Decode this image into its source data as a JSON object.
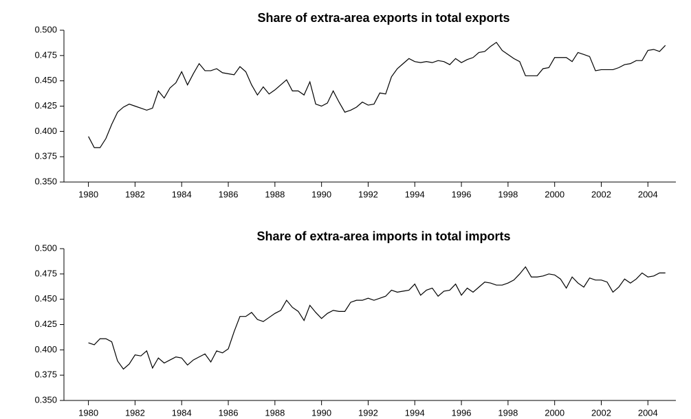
{
  "chart_data": [
    {
      "type": "line",
      "title": "Share of extra-area exports in total exports",
      "x": [
        1980,
        1980.25,
        1980.5,
        1980.75,
        1981,
        1981.25,
        1981.5,
        1981.75,
        1982,
        1982.25,
        1982.5,
        1982.75,
        1983,
        1983.25,
        1983.5,
        1983.75,
        1984,
        1984.25,
        1984.5,
        1984.75,
        1985,
        1985.25,
        1985.5,
        1985.75,
        1986,
        1986.25,
        1986.5,
        1986.75,
        1987,
        1987.25,
        1987.5,
        1987.75,
        1988,
        1988.25,
        1988.5,
        1988.75,
        1989,
        1989.25,
        1989.5,
        1989.75,
        1990,
        1990.25,
        1990.5,
        1990.75,
        1991,
        1991.25,
        1991.5,
        1991.75,
        1992,
        1992.25,
        1992.5,
        1992.75,
        1993,
        1993.25,
        1993.5,
        1993.75,
        1994,
        1994.25,
        1994.5,
        1994.75,
        1995,
        1995.25,
        1995.5,
        1995.75,
        1996,
        1996.25,
        1996.5,
        1996.75,
        1997,
        1997.25,
        1997.5,
        1997.75,
        1998,
        1998.25,
        1998.5,
        1998.75,
        1999,
        1999.25,
        1999.5,
        1999.75,
        2000,
        2000.25,
        2000.5,
        2000.75,
        2001,
        2001.25,
        2001.5,
        2001.75,
        2002,
        2002.25,
        2002.5,
        2002.75,
        2003,
        2003.25,
        2003.5,
        2003.75,
        2004,
        2004.25,
        2004.5,
        2004.75
      ],
      "values": [
        0.395,
        0.384,
        0.384,
        0.393,
        0.407,
        0.419,
        0.424,
        0.427,
        0.425,
        0.423,
        0.421,
        0.423,
        0.44,
        0.433,
        0.443,
        0.448,
        0.459,
        0.446,
        0.457,
        0.467,
        0.46,
        0.46,
        0.462,
        0.458,
        0.457,
        0.456,
        0.464,
        0.459,
        0.446,
        0.436,
        0.444,
        0.437,
        0.441,
        0.446,
        0.451,
        0.44,
        0.44,
        0.436,
        0.449,
        0.427,
        0.425,
        0.428,
        0.44,
        0.429,
        0.419,
        0.421,
        0.424,
        0.429,
        0.426,
        0.427,
        0.438,
        0.437,
        0.454,
        0.462,
        0.467,
        0.472,
        0.469,
        0.468,
        0.469,
        0.468,
        0.47,
        0.469,
        0.466,
        0.472,
        0.468,
        0.471,
        0.473,
        0.478,
        0.479,
        0.484,
        0.488,
        0.48,
        0.476,
        0.472,
        0.469,
        0.455,
        0.455,
        0.455,
        0.462,
        0.463,
        0.473,
        0.473,
        0.473,
        0.469,
        0.478,
        0.476,
        0.474,
        0.46,
        0.461,
        0.461,
        0.461,
        0.463,
        0.466,
        0.467,
        0.47,
        0.47,
        0.48,
        0.481,
        0.479,
        0.485
      ],
      "color": "#000000",
      "xlim": [
        1978.95,
        2005.2
      ],
      "xticks": [
        1980,
        1982,
        1984,
        1986,
        1988,
        1990,
        1992,
        1994,
        1996,
        1998,
        2000,
        2002,
        2004
      ],
      "ylim": [
        0.35,
        0.5
      ],
      "yticks": [
        {
          "value": 0.35,
          "label": "0.350"
        },
        {
          "value": 0.375,
          "label": "0.375"
        },
        {
          "value": 0.4,
          "label": "0.400"
        },
        {
          "value": 0.425,
          "label": "0.425"
        },
        {
          "value": 0.45,
          "label": "0.450"
        },
        {
          "value": 0.475,
          "label": "0.475"
        },
        {
          "value": 0.5,
          "label": "0.500"
        }
      ]
    },
    {
      "type": "line",
      "title": "Share of extra-area imports in total imports",
      "x": [
        1980,
        1980.25,
        1980.5,
        1980.75,
        1981,
        1981.25,
        1981.5,
        1981.75,
        1982,
        1982.25,
        1982.5,
        1982.75,
        1983,
        1983.25,
        1983.5,
        1983.75,
        1984,
        1984.25,
        1984.5,
        1984.75,
        1985,
        1985.25,
        1985.5,
        1985.75,
        1986,
        1986.25,
        1986.5,
        1986.75,
        1987,
        1987.25,
        1987.5,
        1987.75,
        1988,
        1988.25,
        1988.5,
        1988.75,
        1989,
        1989.25,
        1989.5,
        1989.75,
        1990,
        1990.25,
        1990.5,
        1990.75,
        1991,
        1991.25,
        1991.5,
        1991.75,
        1992,
        1992.25,
        1992.5,
        1992.75,
        1993,
        1993.25,
        1993.5,
        1993.75,
        1994,
        1994.25,
        1994.5,
        1994.75,
        1995,
        1995.25,
        1995.5,
        1995.75,
        1996,
        1996.25,
        1996.5,
        1996.75,
        1997,
        1997.25,
        1997.5,
        1997.75,
        1998,
        1998.25,
        1998.5,
        1998.75,
        1999,
        1999.25,
        1999.5,
        1999.75,
        2000,
        2000.25,
        2000.5,
        2000.75,
        2001,
        2001.25,
        2001.5,
        2001.75,
        2002,
        2002.25,
        2002.5,
        2002.75,
        2003,
        2003.25,
        2003.5,
        2003.75,
        2004,
        2004.25,
        2004.5,
        2004.75
      ],
      "values": [
        0.407,
        0.405,
        0.411,
        0.411,
        0.408,
        0.389,
        0.381,
        0.386,
        0.395,
        0.394,
        0.399,
        0.382,
        0.392,
        0.387,
        0.39,
        0.393,
        0.392,
        0.385,
        0.39,
        0.393,
        0.396,
        0.388,
        0.399,
        0.397,
        0.401,
        0.418,
        0.433,
        0.433,
        0.437,
        0.43,
        0.428,
        0.432,
        0.436,
        0.439,
        0.449,
        0.442,
        0.438,
        0.429,
        0.444,
        0.437,
        0.431,
        0.436,
        0.439,
        0.438,
        0.438,
        0.447,
        0.449,
        0.449,
        0.451,
        0.449,
        0.451,
        0.453,
        0.459,
        0.457,
        0.458,
        0.459,
        0.465,
        0.454,
        0.459,
        0.461,
        0.453,
        0.458,
        0.459,
        0.465,
        0.454,
        0.461,
        0.457,
        0.462,
        0.467,
        0.466,
        0.464,
        0.464,
        0.466,
        0.469,
        0.475,
        0.482,
        0.472,
        0.472,
        0.473,
        0.475,
        0.474,
        0.47,
        0.461,
        0.472,
        0.466,
        0.462,
        0.471,
        0.469,
        0.469,
        0.467,
        0.457,
        0.462,
        0.47,
        0.466,
        0.47,
        0.476,
        0.472,
        0.473,
        0.476,
        0.476
      ],
      "color": "#000000",
      "xlim": [
        1978.95,
        2005.2
      ],
      "xticks": [
        1980,
        1982,
        1984,
        1986,
        1988,
        1990,
        1992,
        1994,
        1996,
        1998,
        2000,
        2002,
        2004
      ],
      "ylim": [
        0.35,
        0.5
      ],
      "yticks": [
        {
          "value": 0.35,
          "label": "0.350"
        },
        {
          "value": 0.375,
          "label": "0.375"
        },
        {
          "value": 0.4,
          "label": "0.400"
        },
        {
          "value": 0.425,
          "label": "0.425"
        },
        {
          "value": 0.45,
          "label": "0.450"
        },
        {
          "value": 0.475,
          "label": "0.475"
        },
        {
          "value": 0.5,
          "label": "0.500"
        }
      ]
    }
  ]
}
